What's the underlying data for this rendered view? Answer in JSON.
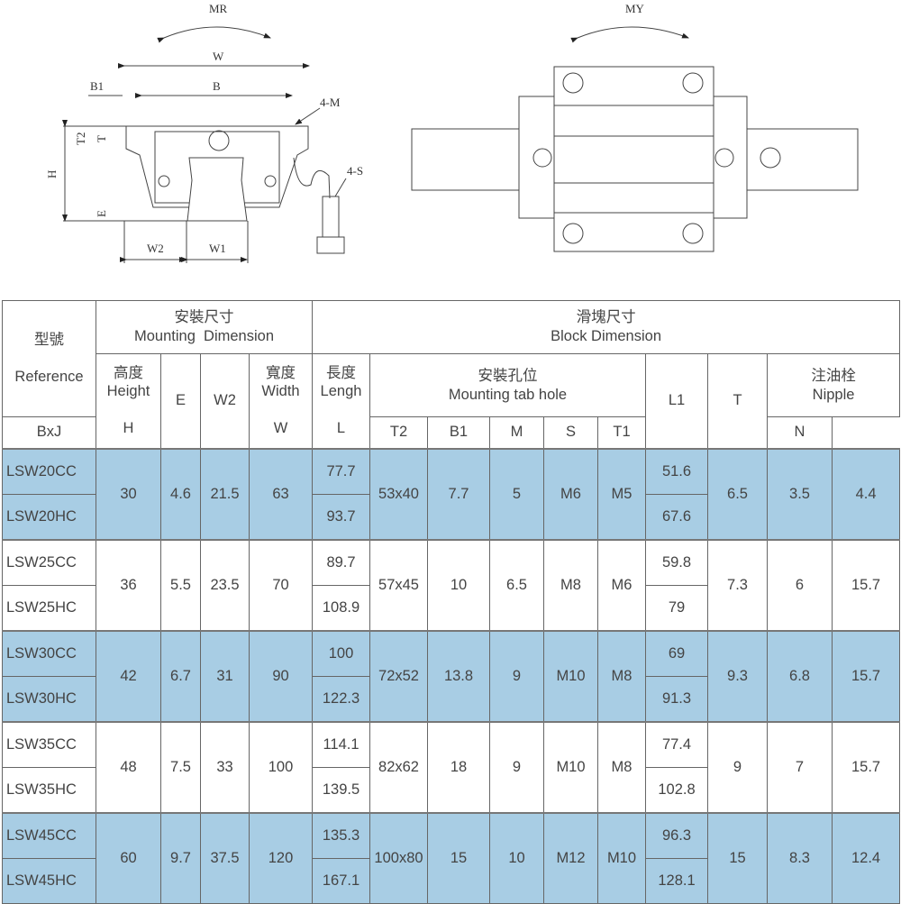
{
  "drawing_front": {
    "moment": "MR",
    "labels": {
      "W": "W",
      "B": "B",
      "B1": "B1",
      "M": "4-M",
      "S": "4-S",
      "T2": "T2",
      "T": "T",
      "H": "H",
      "E": "E",
      "W2": "W2",
      "W1": "W1"
    }
  },
  "drawing_top": {
    "moment": "MY"
  },
  "colors": {
    "shaded_row": "#a8cde4",
    "border": "#666666"
  },
  "header": {
    "reference_cn": "型號",
    "reference_en": "Reference",
    "mounting_cn": "安裝尺寸",
    "mounting_en": "Mounting  Dimension",
    "block_cn": "滑塊尺寸",
    "block_en": "Block Dimension",
    "height_cn": "高度",
    "height_en": "Height",
    "height_sym": "H",
    "e": "E",
    "w2": "W2",
    "width_cn": "寬度",
    "width_en": "Width",
    "width_sym": "W",
    "length_cn": "長度",
    "length_en": "Lengh",
    "length_sym": "L",
    "tab_cn": "安裝孔位",
    "tab_en": "Mounting tab hole",
    "bxj": "BxJ",
    "t2": "T2",
    "b1": "B1",
    "m": "M",
    "s": "S",
    "l1": "L1",
    "t": "T",
    "nipple_cn": "注油栓",
    "nipple_en": "Nipple",
    "t1": "T1",
    "n": "N"
  },
  "rows": [
    {
      "refs": [
        "LSW20CC",
        "LSW20HC"
      ],
      "H": "30",
      "E": "4.6",
      "W2": "21.5",
      "W": "63",
      "L": [
        "77.7",
        "93.7"
      ],
      "BxJ": "53x40",
      "T2": "7.7",
      "B1": "5",
      "M": "M6",
      "S": "M5",
      "L1": [
        "51.6",
        "67.6"
      ],
      "T": "6.5",
      "T1": "3.5",
      "N": "4.4",
      "shaded": true
    },
    {
      "refs": [
        "LSW25CC",
        "LSW25HC"
      ],
      "H": "36",
      "E": "5.5",
      "W2": "23.5",
      "W": "70",
      "L": [
        "89.7",
        "108.9"
      ],
      "BxJ": "57x45",
      "T2": "10",
      "B1": "6.5",
      "M": "M8",
      "S": "M6",
      "L1": [
        "59.8",
        "79"
      ],
      "T": "7.3",
      "T1": "6",
      "N": "15.7",
      "shaded": false
    },
    {
      "refs": [
        "LSW30CC",
        "LSW30HC"
      ],
      "H": "42",
      "E": "6.7",
      "W2": "31",
      "W": "90",
      "L": [
        "100",
        "122.3"
      ],
      "BxJ": "72x52",
      "T2": "13.8",
      "B1": "9",
      "M": "M10",
      "S": "M8",
      "L1": [
        "69",
        "91.3"
      ],
      "T": "9.3",
      "T1": "6.8",
      "N": "15.7",
      "shaded": true
    },
    {
      "refs": [
        "LSW35CC",
        "LSW35HC"
      ],
      "H": "48",
      "E": "7.5",
      "W2": "33",
      "W": "100",
      "L": [
        "114.1",
        "139.5"
      ],
      "BxJ": "82x62",
      "T2": "18",
      "B1": "9",
      "M": "M10",
      "S": "M8",
      "L1": [
        "77.4",
        "102.8"
      ],
      "T": "9",
      "T1": "7",
      "N": "15.7",
      "shaded": false
    },
    {
      "refs": [
        "LSW45CC",
        "LSW45HC"
      ],
      "H": "60",
      "E": "9.7",
      "W2": "37.5",
      "W": "120",
      "L": [
        "135.3",
        "167.1"
      ],
      "BxJ": "100x80",
      "T2": "15",
      "B1": "10",
      "M": "M12",
      "S": "M10",
      "L1": [
        "96.3",
        "128.1"
      ],
      "T": "15",
      "T1": "8.3",
      "N": "12.4",
      "shaded": true
    }
  ]
}
